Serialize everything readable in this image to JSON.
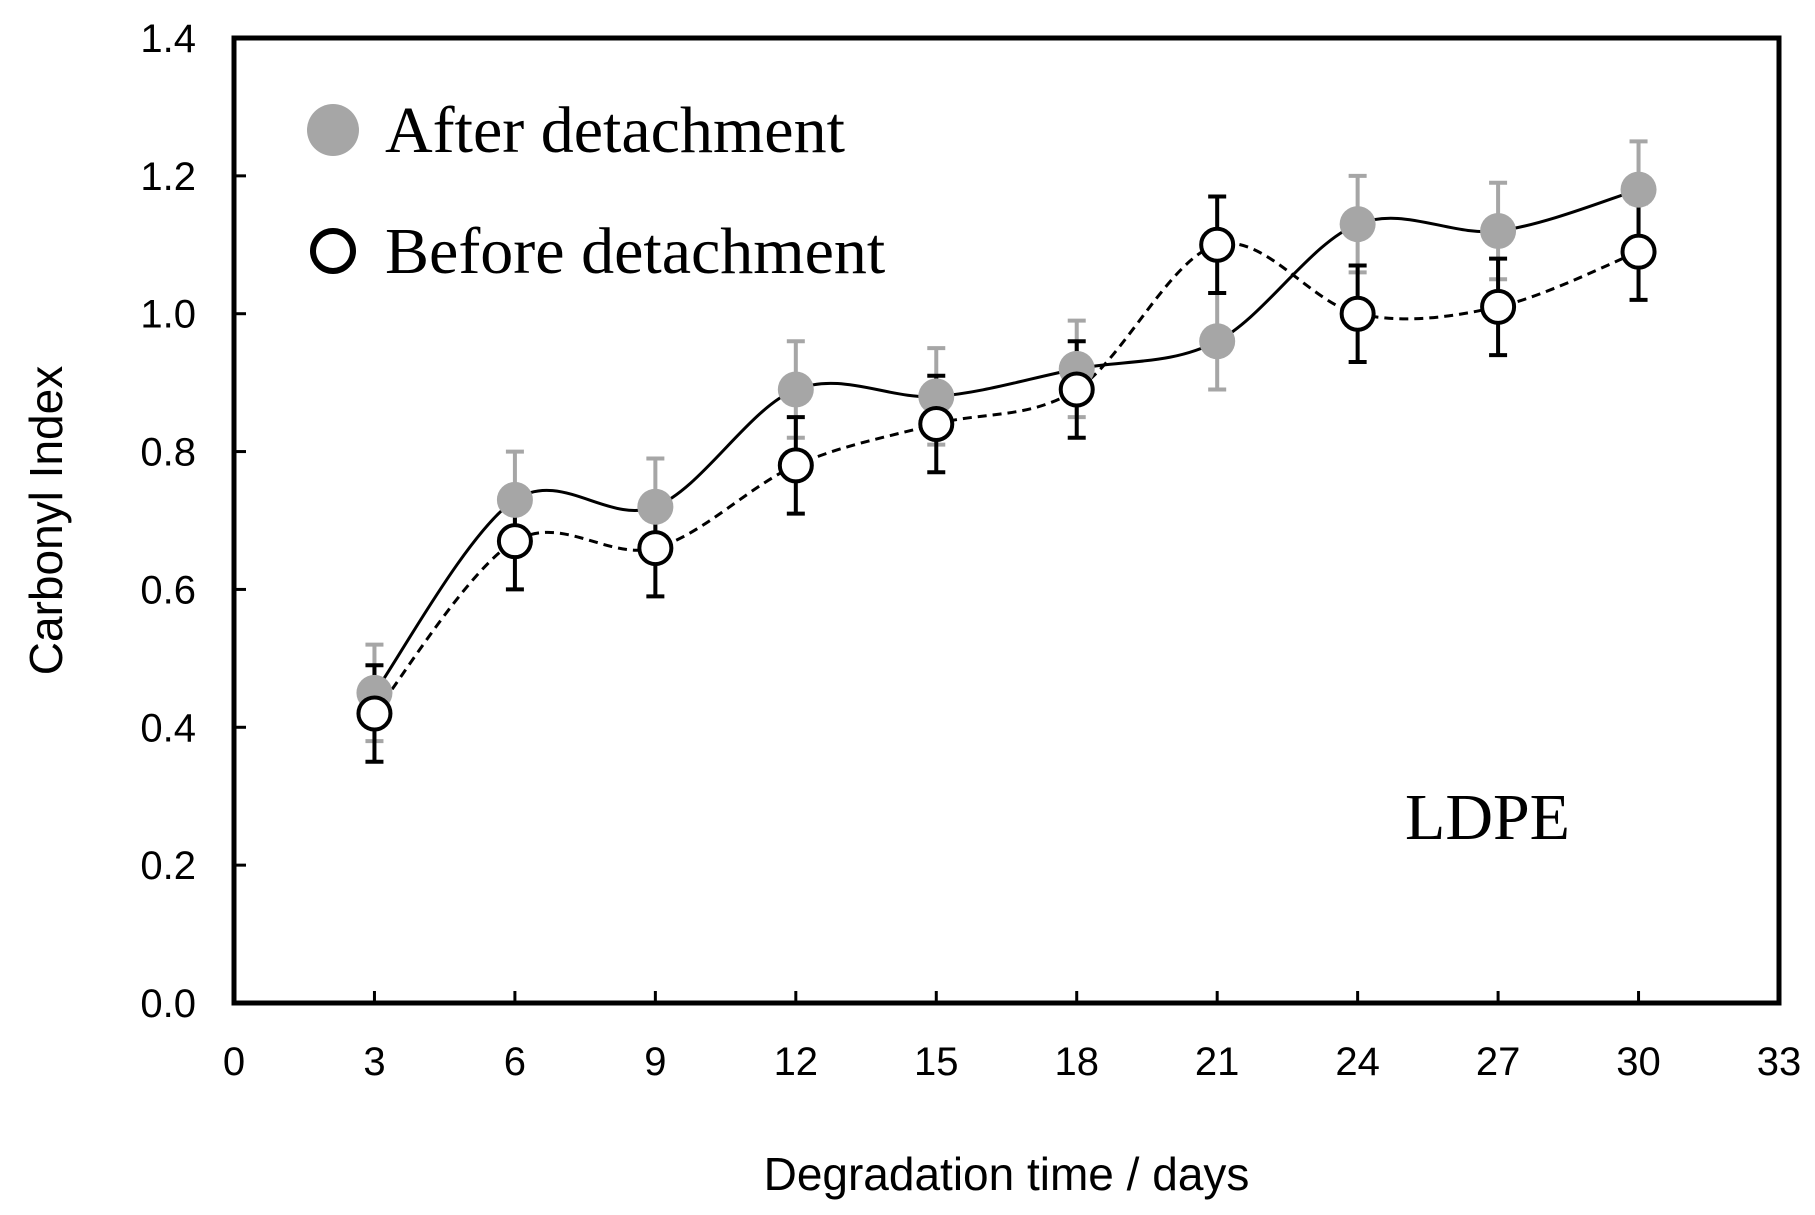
{
  "chart_data": {
    "type": "line",
    "xlabel": "Degradation time / days",
    "ylabel": "Carbonyl Index",
    "xlim": [
      0,
      33
    ],
    "ylim": [
      0,
      1.4
    ],
    "x_ticks": [
      "0",
      "3",
      "6",
      "9",
      "12",
      "15",
      "18",
      "21",
      "24",
      "27",
      "30",
      "33"
    ],
    "y_ticks": [
      "0.0",
      "0.2",
      "0.4",
      "0.6",
      "0.8",
      "1.0",
      "1.2",
      "1.4"
    ],
    "grid": false,
    "legend_position": "top-left",
    "annotation": "LDPE",
    "x": [
      3,
      6,
      9,
      12,
      15,
      18,
      21,
      24,
      27,
      30
    ],
    "series": [
      {
        "name": "After detachment",
        "marker": "filled-circle",
        "line": "solid",
        "color": "#a6a6a6",
        "error_color": "#a6a6a6",
        "values": [
          0.45,
          0.73,
          0.72,
          0.89,
          0.88,
          0.92,
          0.96,
          1.13,
          1.12,
          1.18
        ],
        "errors": [
          0.07,
          0.07,
          0.07,
          0.07,
          0.07,
          0.07,
          0.07,
          0.07,
          0.07,
          0.07
        ]
      },
      {
        "name": "Before detachment",
        "marker": "open-circle",
        "line": "dashed",
        "color": "#000000",
        "error_color": "#000000",
        "values": [
          0.42,
          0.67,
          0.66,
          0.78,
          0.84,
          0.89,
          1.1,
          1.0,
          1.01,
          1.09
        ],
        "errors": [
          0.07,
          0.07,
          0.07,
          0.07,
          0.07,
          0.07,
          0.07,
          0.07,
          0.07,
          0.07
        ]
      }
    ]
  }
}
